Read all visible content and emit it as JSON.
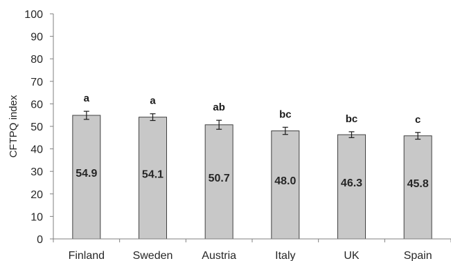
{
  "chart_data": {
    "type": "bar",
    "ylabel": "CFTPQ index",
    "xlabel": "",
    "title": "",
    "ylim": [
      0,
      100
    ],
    "yticks": [
      0,
      10,
      20,
      30,
      40,
      50,
      60,
      70,
      80,
      90,
      100
    ],
    "grid": false,
    "categories": [
      "Finland",
      "Sweden",
      "Austria",
      "Italy",
      "UK",
      "Spain"
    ],
    "values": [
      54.9,
      54.1,
      50.7,
      48.0,
      46.3,
      45.8
    ],
    "value_labels": [
      "54.9",
      "54.1",
      "50.7",
      "48.0",
      "46.3",
      "45.8"
    ],
    "error": [
      1.8,
      1.5,
      2.0,
      1.6,
      1.3,
      1.5
    ],
    "significance_letters": [
      "a",
      "a",
      "ab",
      "bc",
      "bc",
      "c"
    ],
    "bar_color": "#c8c8c8",
    "bar_edge_color": "#404040",
    "axis_color": "#7f7f7f"
  }
}
